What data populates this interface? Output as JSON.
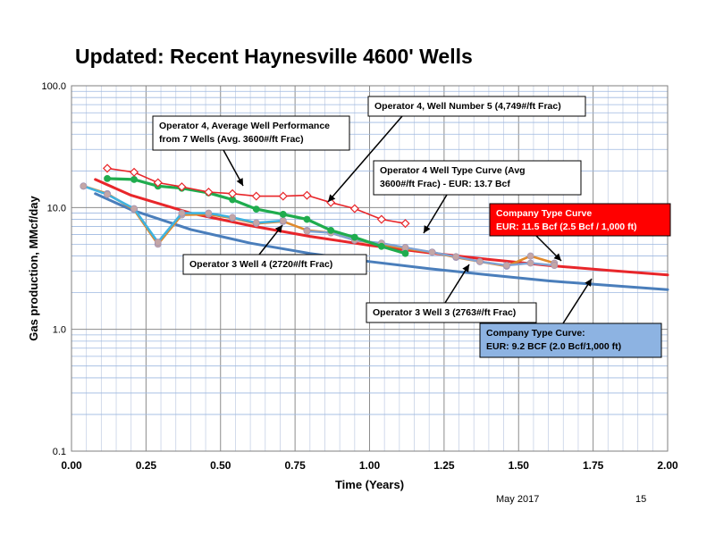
{
  "slide": {
    "title": "Updated: Recent Haynesville 4600' Wells",
    "footer_date": "May 2017",
    "page_number": "15"
  },
  "chart_data": {
    "type": "line",
    "title": "",
    "xlabel": "Time (Years)",
    "ylabel": "Gas production, MMcf/day",
    "xlim": [
      0,
      2
    ],
    "ylim": [
      0.1,
      100
    ],
    "y_scale": "log",
    "grid": true,
    "x_ticks": [
      "0.00",
      "0.25",
      "0.50",
      "0.75",
      "1.00",
      "1.25",
      "1.50",
      "1.75",
      "2.00"
    ],
    "y_ticks": [
      {
        "value": 0.1,
        "label": "0.1"
      },
      {
        "value": 1,
        "label": "1.0"
      },
      {
        "value": 10,
        "label": "10.0"
      },
      {
        "value": 100,
        "label": "100.0"
      }
    ],
    "series": [
      {
        "name": "Operator 4, Well Number 5 (4,749#/ft Frac)",
        "color": "#e8262a",
        "marker": "open-diamond",
        "x": [
          0.12,
          0.21,
          0.29,
          0.37,
          0.46,
          0.54,
          0.62,
          0.71,
          0.79,
          0.87,
          0.95,
          1.04,
          1.12
        ],
        "y": [
          21.0,
          19.5,
          16.0,
          14.8,
          13.4,
          13.0,
          12.4,
          12.4,
          12.6,
          11.0,
          9.8,
          8.0,
          7.4
        ]
      },
      {
        "name": "Operator 4, Average Well Performance from 7 Wells (Avg. 3600#/ft Frac)",
        "color": "#1fac4e",
        "marker": "circle",
        "x": [
          0.12,
          0.21,
          0.29,
          0.37,
          0.46,
          0.54,
          0.62,
          0.71,
          0.79,
          0.87,
          0.95,
          1.04,
          1.12
        ],
        "y": [
          17.3,
          17.0,
          15.0,
          14.4,
          13.2,
          11.6,
          9.7,
          8.8,
          8.0,
          6.5,
          5.7,
          4.8,
          4.2
        ]
      },
      {
        "name": "Operator 3 Well 4 (2720#/ft Frac)",
        "color": "#3fb3e0",
        "marker": "circle",
        "x": [
          0.04,
          0.12,
          0.21,
          0.29,
          0.37,
          0.46,
          0.54,
          0.62,
          0.71
        ],
        "y": [
          15.0,
          12.8,
          9.8,
          5.2,
          9.0,
          9.0,
          8.3,
          7.5,
          7.8
        ]
      },
      {
        "name": "Operator 3 Well 3 (2763#/ft Frac)",
        "color": "#e08a2c",
        "marker": "circle",
        "x": [
          0.04,
          0.12,
          0.21,
          0.29,
          0.37,
          0.46,
          0.54,
          0.62,
          0.71,
          0.79,
          0.87,
          0.95,
          1.04,
          1.12,
          1.21,
          1.29,
          1.37,
          1.46,
          1.54,
          1.62
        ],
        "y": [
          15.0,
          13.0,
          9.6,
          5.0,
          8.7,
          8.8,
          8.2,
          7.4,
          7.7,
          6.5,
          6.2,
          5.4,
          5.0,
          4.6,
          4.3,
          3.9,
          3.6,
          3.3,
          4.0,
          3.5
        ]
      },
      {
        "name": "Operator 3 Well 3 (2763#/ft Frac)",
        "color": "#7fa3d4",
        "marker": "circle",
        "x": [
          0.79,
          0.87,
          0.95,
          1.04,
          1.12,
          1.21,
          1.29,
          1.37,
          1.46,
          1.54,
          1.62
        ],
        "y": [
          6.4,
          6.2,
          5.4,
          5.1,
          4.7,
          4.3,
          3.95,
          3.6,
          3.35,
          3.5,
          3.35
        ]
      },
      {
        "name": "Company Type Curve: EUR: 11.5 Bcf (2.5 Bcf / 1,000 ft)",
        "color": "#e8262a",
        "marker": "none",
        "x": [
          0.08,
          0.2,
          0.4,
          0.6,
          0.8,
          1.0,
          1.2,
          1.4,
          1.6,
          1.8,
          2.0
        ],
        "y": [
          17.0,
          12.6,
          9.0,
          7.1,
          5.8,
          4.9,
          4.25,
          3.75,
          3.35,
          3.05,
          2.8
        ]
      },
      {
        "name": "Company Type Curve: EUR: 9.2 BCF (2.0 Bcf/1,000 ft)",
        "color": "#4a7ebb",
        "marker": "none",
        "x": [
          0.08,
          0.2,
          0.4,
          0.6,
          0.8,
          1.0,
          1.2,
          1.4,
          1.6,
          1.8,
          2.0
        ],
        "y": [
          13.0,
          9.6,
          6.6,
          5.1,
          4.2,
          3.6,
          3.15,
          2.8,
          2.5,
          2.3,
          2.12
        ]
      }
    ],
    "annotations": {
      "op4_avg": "Operator 4, Average Well Performance\nfrom 7 Wells (Avg. 3600#/ft Frac)",
      "op4_well5": "Operator 4, Well Number 5 (4,749#/ft Frac)",
      "op4_typecurve": "Operator 4 Well Type Curve (Avg\n3600#/ft Frac) - EUR: 13.7 Bcf",
      "company_red": "Company Type Curve\nEUR: 11.5 Bcf (2.5 Bcf / 1,000 ft)",
      "op3_well4": "Operator 3 Well 4 (2720#/ft Frac)",
      "op3_well3": "Operator 3 Well 3 (2763#/ft Frac)",
      "company_blue": "Company Type Curve:\nEUR: 9.2 BCF (2.0 Bcf/1,000 ft)"
    },
    "annotation_colors": {
      "company_red_fill": "#ff0000",
      "company_blue_fill": "#8db3e2"
    }
  }
}
